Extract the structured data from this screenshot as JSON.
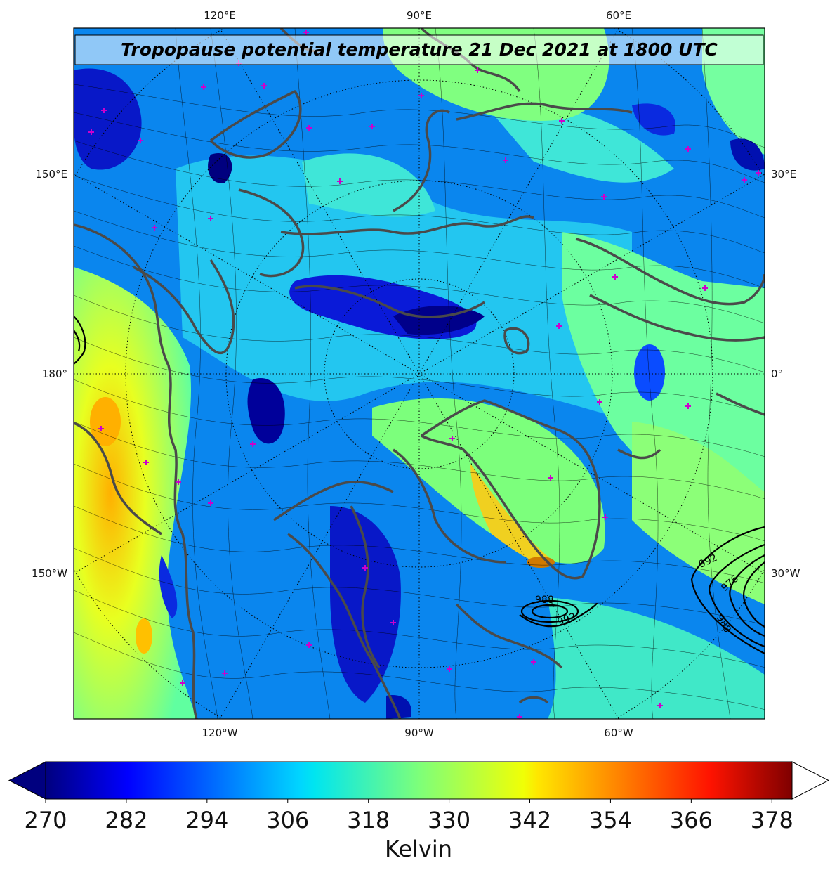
{
  "title": "Tropopause potential temperature 21 Dec 2021 at 1800 UTC",
  "lon_labels": {
    "top": [
      "120°E",
      "90°E",
      "60°E"
    ],
    "bottom": [
      "120°W",
      "90°W",
      "60°W"
    ],
    "left": [
      "150°E",
      "180°",
      "150°W"
    ],
    "right": [
      "30°E",
      "0°",
      "30°W"
    ]
  },
  "colorbar": {
    "ticks": [
      "270",
      "282",
      "294",
      "306",
      "318",
      "330",
      "342",
      "354",
      "366",
      "378"
    ],
    "label": "Kelvin",
    "min": 270,
    "max": 381,
    "colormap": "jet"
  },
  "pressure_contour_labels": [
    "988",
    "992",
    "992",
    "976",
    "988"
  ],
  "colors": {
    "coastline": "#4a4a4a",
    "station_marker": "#cc00cc",
    "contour": "#000000"
  }
}
